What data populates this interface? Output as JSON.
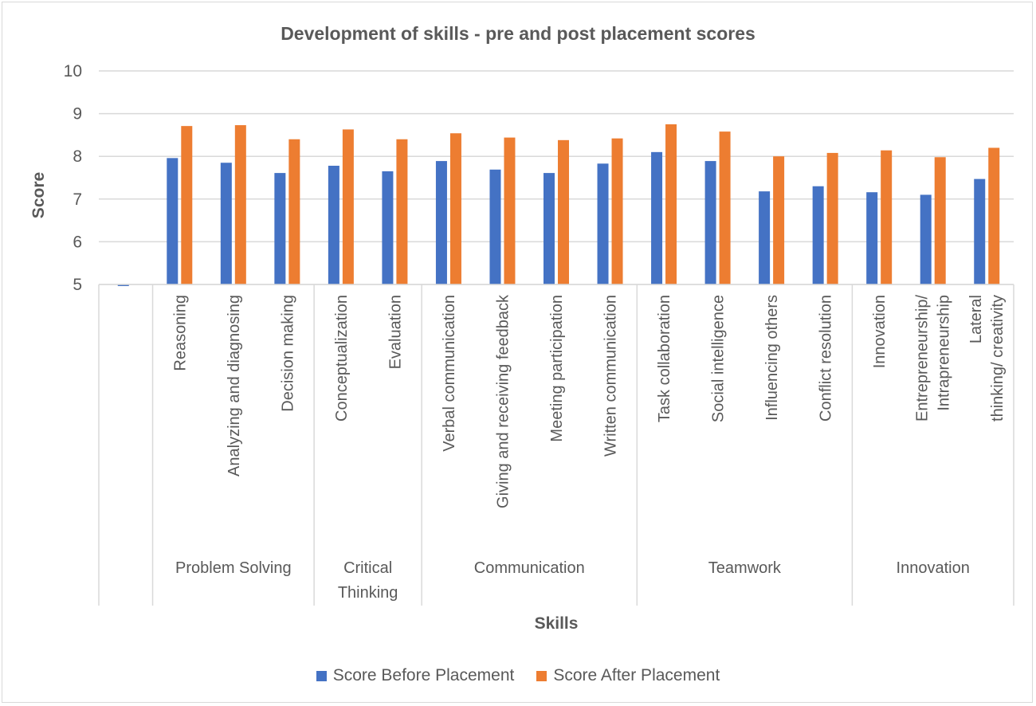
{
  "chart_data": {
    "type": "bar",
    "title": "Development of skills - pre and post placement scores",
    "xlabel": "Skills",
    "ylabel": "Score",
    "ylim": [
      5,
      10
    ],
    "yticks": [
      "5",
      "6",
      "7",
      "8",
      "9",
      "10"
    ],
    "grid": true,
    "legend_position": "bottom",
    "categories": [
      "",
      "Reasoning",
      "Analyzing and diagnosing",
      "Decision making",
      "Conceptualization",
      "Evaluation",
      "Verbal communication",
      "Giving and receiving feedback",
      "Meeting participation",
      "Written communication",
      "Task collaboration",
      "Social intelligence",
      "Influencing others",
      "Conflict resolution",
      "Innovation",
      "Entrepreneurship/ Intrapreneurship",
      "Lateral thinking/ creativity"
    ],
    "groups": [
      {
        "label": "",
        "count": 1
      },
      {
        "label": "Problem Solving",
        "count": 3
      },
      {
        "label": "Critical Thinking",
        "count": 2
      },
      {
        "label": "Communication",
        "count": 4
      },
      {
        "label": "Teamwork",
        "count": 4
      },
      {
        "label": "Innovation",
        "count": 3
      }
    ],
    "series": [
      {
        "name": "Score Before Placement",
        "color": "#4472C4",
        "values": [
          4.97,
          7.96,
          7.85,
          7.61,
          7.78,
          7.65,
          7.89,
          7.69,
          7.61,
          7.83,
          8.1,
          7.89,
          7.18,
          7.3,
          7.16,
          7.1,
          7.47
        ]
      },
      {
        "name": "Score After Placement",
        "color": "#ED7D31",
        "values": [
          null,
          8.71,
          8.73,
          8.4,
          8.63,
          8.4,
          8.54,
          8.44,
          8.38,
          8.42,
          8.75,
          8.58,
          8.0,
          8.08,
          8.14,
          7.98,
          8.2
        ]
      }
    ]
  }
}
